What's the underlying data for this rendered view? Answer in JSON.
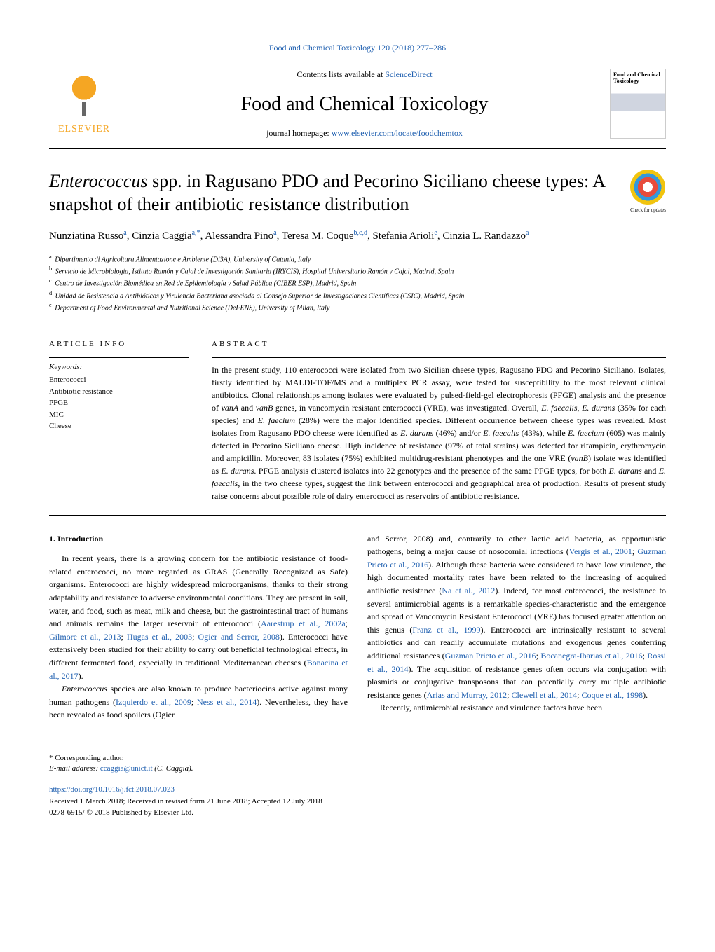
{
  "topLink": "Food and Chemical Toxicology 120 (2018) 277–286",
  "header": {
    "contentsLine": "Contents lists available at ",
    "contentsLinkText": "ScienceDirect",
    "journalTitle": "Food and Chemical Toxicology",
    "homepagePrefix": "journal homepage: ",
    "homepageUrl": "www.elsevier.com/locate/foodchemtox",
    "publisherName": "ELSEVIER",
    "coverText": "Food and Chemical Toxicology"
  },
  "checkUpdates": "Check for updates",
  "title": {
    "italicPart": "Enterococcus",
    "rest": " spp. in Ragusano PDO and Pecorino Siciliano cheese types: A snapshot of their antibiotic resistance distribution"
  },
  "authors": [
    {
      "name": "Nunziatina Russo",
      "sup": "a"
    },
    {
      "name": "Cinzia Caggia",
      "sup": "a,*"
    },
    {
      "name": "Alessandra Pino",
      "sup": "a"
    },
    {
      "name": "Teresa M. Coque",
      "sup": "b,c,d"
    },
    {
      "name": "Stefania Arioli",
      "sup": "e"
    },
    {
      "name": "Cinzia L. Randazzo",
      "sup": "a"
    }
  ],
  "affiliations": [
    {
      "sup": "a",
      "text": "Dipartimento di Agricoltura Alimentazione e Ambiente (Di3A), University of Catania, Italy"
    },
    {
      "sup": "b",
      "text": "Servicio de Microbiología, Istituto Ramón y Cajal de Investigación Sanitaria (IRYCIS), Hospital Universitario Ramón y Cajal, Madrid, Spain"
    },
    {
      "sup": "c",
      "text": "Centro de Investigación Biomédica en Red de Epidemiología y Salud Pública (CIBER ESP), Madrid, Spain"
    },
    {
      "sup": "d",
      "text": "Unidad de Resistencia a Antibióticos y Virulencia Bacteriana asociada al Consejo Superior de Investigaciones Científicas (CSIC), Madrid, Spain"
    },
    {
      "sup": "e",
      "text": "Department of Food Environmental and Nutritional Science (DeFENS), University of Milan, Italy"
    }
  ],
  "articleInfo": {
    "label": "ARTICLE INFO",
    "keywordsLabel": "Keywords:",
    "keywords": [
      "Enterococci",
      "Antibiotic resistance",
      "PFGE",
      "MIC",
      "Cheese"
    ]
  },
  "abstract": {
    "label": "ABSTRACT",
    "text": "In the present study, 110 enterococci were isolated from two Sicilian cheese types, Ragusano PDO and Pecorino Siciliano. Isolates, firstly identified by MALDI-TOF/MS and a multiplex PCR assay, were tested for susceptibility to the most relevant clinical antibiotics. Clonal relationships among isolates were evaluated by pulsed-field-gel electrophoresis (PFGE) analysis and the presence of vanA and vanB genes, in vancomycin resistant enterococci (VRE), was investigated. Overall, E. faecalis, E. durans (35% for each species) and E. faecium (28%) were the major identified species. Different occurrence between cheese types was revealed. Most isolates from Ragusano PDO cheese were identified as E. durans (46%) and/or E. faecalis (43%), while E. faecium (605) was mainly detected in Pecorino Siciliano cheese. High incidence of resistance (97% of total strains) was detected for rifampicin, erythromycin and ampicillin. Moreover, 83 isolates (75%) exhibited multidrug-resistant phenotypes and the one VRE (vanB) isolate was identified as E. durans. PFGE analysis clustered isolates into 22 genotypes and the presence of the same PFGE types, for both E. durans and E. faecalis, in the two cheese types, suggest the link between enterococci and geographical area of production. Results of present study raise concerns about possible role of dairy enterococci as reservoirs of antibiotic resistance."
  },
  "introduction": {
    "heading": "1. Introduction",
    "col1p1": "In recent years, there is a growing concern for the antibiotic resistance of food-related enterococci, no more regarded as GRAS (Generally Recognized as Safe) organisms. Enterococci are highly widespread microorganisms, thanks to their strong adaptability and resistance to adverse environmental conditions. They are present in soil, water, and food, such as meat, milk and cheese, but the gastrointestinal tract of humans and animals remains the larger reservoir of enterococci (Aarestrup et al., 2002a; Gilmore et al., 2013; Hugas et al., 2003; Ogier and Serror, 2008). Enterococci have extensively been studied for their ability to carry out beneficial technological effects, in different fermented food, especially in traditional Mediterranean cheeses (Bonacina et al., 2017).",
    "col1p2": "Enterococcus species are also known to produce bacteriocins active against many human pathogens (Izquierdo et al., 2009; Ness et al., 2014). Nevertheless, they have been revealed as food spoilers (Ogier",
    "col2p1": "and Serror, 2008) and, contrarily to other lactic acid bacteria, as opportunistic pathogens, being a major cause of nosocomial infections (Vergis et al., 2001; Guzman Prieto et al., 2016). Although these bacteria were considered to have low virulence, the high documented mortality rates have been related to the increasing of acquired antibiotic resistance (Na et al., 2012). Indeed, for most enterococci, the resistance to several antimicrobial agents is a remarkable species-characteristic and the emergence and spread of Vancomycin Resistant Enterococci (VRE) has focused greater attention on this genus (Franz et al., 1999). Enterococci are intrinsically resistant to several antibiotics and can readily accumulate mutations and exogenous genes conferring additional resistances (Guzman Prieto et al., 2016; Bocanegra-Ibarias et al., 2016; Rossi et al., 2014). The acquisition of resistance genes often occurs via conjugation with plasmids or conjugative transposons that can potentially carry multiple antibiotic resistance genes (Arias and Murray, 2012; Clewell et al., 2014; Coque et al., 1998).",
    "col2p2": "Recently, antimicrobial resistance and virulence factors have been"
  },
  "footer": {
    "correspondingLabel": "* Corresponding author.",
    "emailLabel": "E-mail address: ",
    "email": "ccaggia@unict.it",
    "emailSuffix": " (C. Caggia).",
    "doi": "https://doi.org/10.1016/j.fct.2018.07.023",
    "dates": "Received 1 March 2018; Received in revised form 21 June 2018; Accepted 12 July 2018",
    "copyright": "0278-6915/ © 2018 Published by Elsevier Ltd."
  }
}
